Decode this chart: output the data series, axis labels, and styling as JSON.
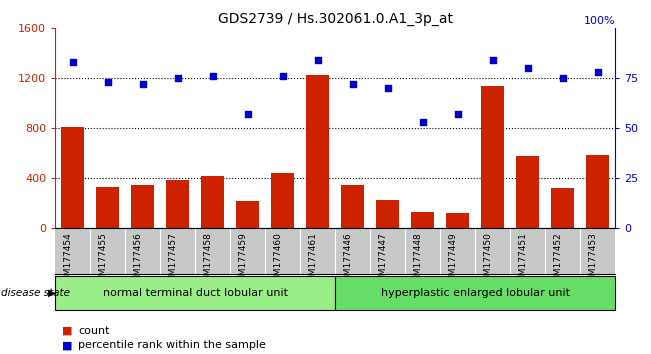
{
  "title": "GDS2739 / Hs.302061.0.A1_3p_at",
  "samples": [
    "GSM177454",
    "GSM177455",
    "GSM177456",
    "GSM177457",
    "GSM177458",
    "GSM177459",
    "GSM177460",
    "GSM177461",
    "GSM177446",
    "GSM177447",
    "GSM177448",
    "GSM177449",
    "GSM177450",
    "GSM177451",
    "GSM177452",
    "GSM177453"
  ],
  "counts": [
    810,
    330,
    345,
    385,
    415,
    215,
    445,
    1230,
    350,
    230,
    130,
    125,
    1135,
    575,
    320,
    590
  ],
  "percentiles": [
    83,
    73,
    72,
    75,
    76,
    57,
    76,
    84,
    72,
    70,
    53,
    57,
    84,
    80,
    75,
    78
  ],
  "group1_label": "normal terminal duct lobular unit",
  "group2_label": "hyperplastic enlarged lobular unit",
  "group1_count": 8,
  "group2_count": 8,
  "bar_color": "#cc2200",
  "dot_color": "#0000cc",
  "bg_color": "#ffffff",
  "tick_area_color": "#c8c8c8",
  "group1_color": "#99ee88",
  "group2_color": "#66dd66",
  "ylim_left": [
    0,
    1600
  ],
  "ylim_right": [
    0,
    100
  ],
  "yticks_left": [
    0,
    400,
    800,
    1200,
    1600
  ],
  "yticks_right": [
    0,
    25,
    50,
    75
  ],
  "grid_lines": [
    400,
    800,
    1200
  ],
  "disease_state_label": "disease state",
  "legend_count_label": "count",
  "legend_percentile_label": "percentile rank within the sample"
}
